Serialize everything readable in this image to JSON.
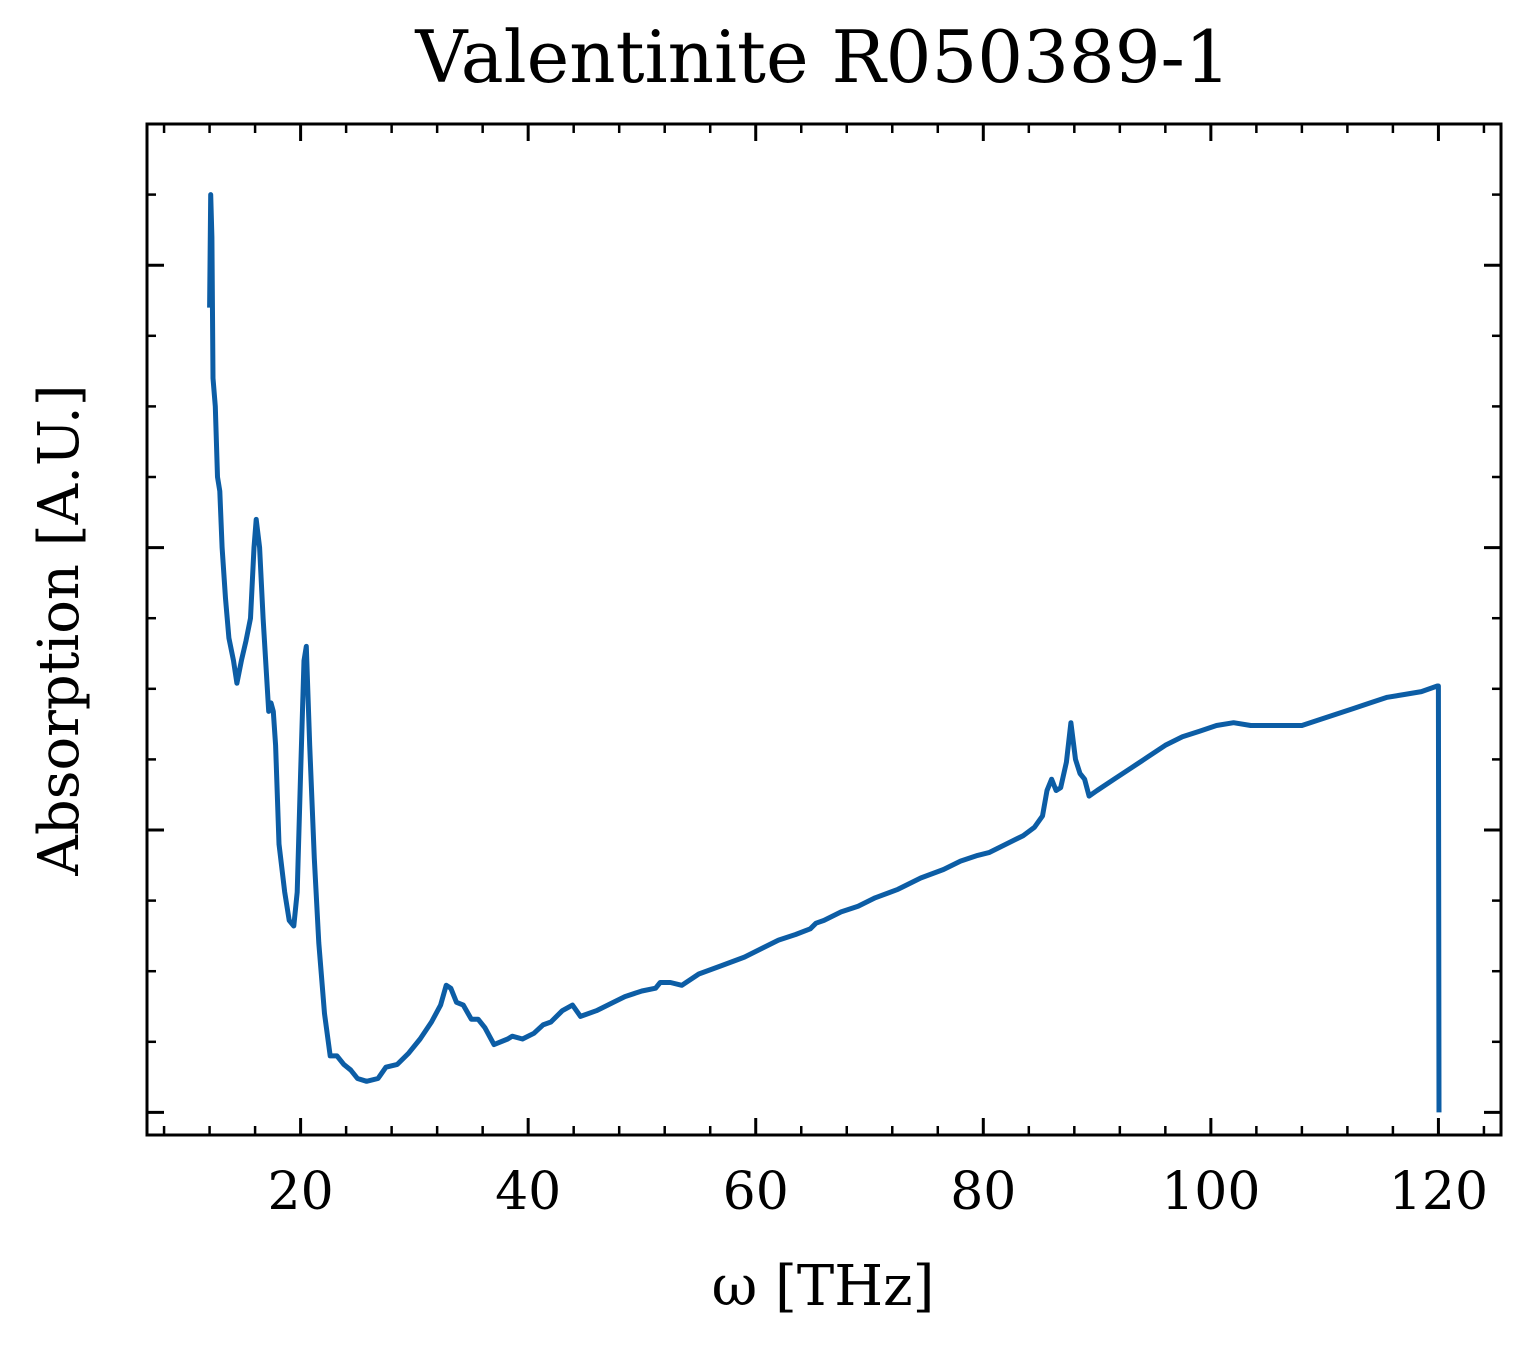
{
  "chart_data": {
    "type": "line",
    "title": "Valentinite R050389-1",
    "xlabel": "ω [THz]",
    "ylabel": "Absorption [A.U.]",
    "xlim": [
      6.5,
      125.5
    ],
    "ylim": [
      -0.08,
      3.5
    ],
    "x_ticks": [
      20,
      40,
      60,
      80,
      100,
      120
    ],
    "x_tick_labels": [
      "20",
      "40",
      "60",
      "80",
      "100",
      "120"
    ],
    "y_major_ticks": [
      0,
      1,
      2,
      3
    ],
    "y_tick_labels_shown": false,
    "x_minor_step": 4,
    "y_minor_step": 0.25,
    "grid": false,
    "legend": "none",
    "colors": {
      "line": "#0c5da5",
      "axes": "#000000",
      "background": "#ffffff"
    },
    "series": [
      {
        "values": [
          [
            12.0,
            2.85
          ],
          [
            12.1,
            3.25
          ],
          [
            12.2,
            3.1
          ],
          [
            12.3,
            2.6
          ],
          [
            12.5,
            2.5
          ],
          [
            12.7,
            2.25
          ],
          [
            12.9,
            2.2
          ],
          [
            13.1,
            2.0
          ],
          [
            13.4,
            1.82
          ],
          [
            13.7,
            1.68
          ],
          [
            14.1,
            1.6
          ],
          [
            14.4,
            1.52
          ],
          [
            14.8,
            1.6
          ],
          [
            15.2,
            1.67
          ],
          [
            15.6,
            1.75
          ],
          [
            15.9,
            2.0
          ],
          [
            16.1,
            2.1
          ],
          [
            16.4,
            2.0
          ],
          [
            16.7,
            1.75
          ],
          [
            17.0,
            1.55
          ],
          [
            17.2,
            1.42
          ],
          [
            17.4,
            1.45
          ],
          [
            17.6,
            1.42
          ],
          [
            17.8,
            1.3
          ],
          [
            18.1,
            0.95
          ],
          [
            18.6,
            0.78
          ],
          [
            19.0,
            0.68
          ],
          [
            19.4,
            0.66
          ],
          [
            19.7,
            0.78
          ],
          [
            20.0,
            1.2
          ],
          [
            20.3,
            1.6
          ],
          [
            20.5,
            1.65
          ],
          [
            20.8,
            1.3
          ],
          [
            21.2,
            0.9
          ],
          [
            21.6,
            0.6
          ],
          [
            22.1,
            0.35
          ],
          [
            22.6,
            0.2
          ],
          [
            23.2,
            0.2
          ],
          [
            23.8,
            0.17
          ],
          [
            24.4,
            0.15
          ],
          [
            25.0,
            0.12
          ],
          [
            25.8,
            0.11
          ],
          [
            26.8,
            0.12
          ],
          [
            27.5,
            0.16
          ],
          [
            28.5,
            0.17
          ],
          [
            29.5,
            0.21
          ],
          [
            30.5,
            0.26
          ],
          [
            31.5,
            0.32
          ],
          [
            32.3,
            0.38
          ],
          [
            32.8,
            0.45
          ],
          [
            33.2,
            0.44
          ],
          [
            33.7,
            0.39
          ],
          [
            34.3,
            0.38
          ],
          [
            35.0,
            0.33
          ],
          [
            35.6,
            0.33
          ],
          [
            36.2,
            0.3
          ],
          [
            37.0,
            0.24
          ],
          [
            38.2,
            0.26
          ],
          [
            38.6,
            0.27
          ],
          [
            39.5,
            0.26
          ],
          [
            40.5,
            0.28
          ],
          [
            41.3,
            0.31
          ],
          [
            42.0,
            0.32
          ],
          [
            43.0,
            0.36
          ],
          [
            43.9,
            0.38
          ],
          [
            44.6,
            0.34
          ],
          [
            46.0,
            0.36
          ],
          [
            47.5,
            0.39
          ],
          [
            48.5,
            0.41
          ],
          [
            50.0,
            0.43
          ],
          [
            51.2,
            0.44
          ],
          [
            51.6,
            0.46
          ],
          [
            52.5,
            0.46
          ],
          [
            53.5,
            0.45
          ],
          [
            55.0,
            0.49
          ],
          [
            57.0,
            0.52
          ],
          [
            59.0,
            0.55
          ],
          [
            60.5,
            0.58
          ],
          [
            62.0,
            0.61
          ],
          [
            63.5,
            0.63
          ],
          [
            64.8,
            0.65
          ],
          [
            65.3,
            0.67
          ],
          [
            66.0,
            0.68
          ],
          [
            67.5,
            0.71
          ],
          [
            69.0,
            0.73
          ],
          [
            70.5,
            0.76
          ],
          [
            72.5,
            0.79
          ],
          [
            74.5,
            0.83
          ],
          [
            76.5,
            0.86
          ],
          [
            78.0,
            0.89
          ],
          [
            79.5,
            0.91
          ],
          [
            80.5,
            0.92
          ],
          [
            82.0,
            0.95
          ],
          [
            83.5,
            0.98
          ],
          [
            84.5,
            1.01
          ],
          [
            85.2,
            1.05
          ],
          [
            85.6,
            1.14
          ],
          [
            86.0,
            1.18
          ],
          [
            86.4,
            1.14
          ],
          [
            86.8,
            1.15
          ],
          [
            87.3,
            1.24
          ],
          [
            87.7,
            1.38
          ],
          [
            88.1,
            1.25
          ],
          [
            88.5,
            1.2
          ],
          [
            88.9,
            1.18
          ],
          [
            89.3,
            1.12
          ],
          [
            90.0,
            1.14
          ],
          [
            91.5,
            1.18
          ],
          [
            93.0,
            1.22
          ],
          [
            94.5,
            1.26
          ],
          [
            96.0,
            1.3
          ],
          [
            97.5,
            1.33
          ],
          [
            99.0,
            1.35
          ],
          [
            100.5,
            1.37
          ],
          [
            102.0,
            1.38
          ],
          [
            103.5,
            1.37
          ],
          [
            105.0,
            1.37
          ],
          [
            106.5,
            1.37
          ],
          [
            108.0,
            1.37
          ],
          [
            109.5,
            1.39
          ],
          [
            111.0,
            1.41
          ],
          [
            112.5,
            1.43
          ],
          [
            114.0,
            1.45
          ],
          [
            115.5,
            1.47
          ],
          [
            117.0,
            1.48
          ],
          [
            118.5,
            1.49
          ],
          [
            119.9,
            1.51
          ],
          [
            120.0,
            1.51
          ],
          [
            120.05,
            0.0
          ]
        ]
      }
    ]
  }
}
